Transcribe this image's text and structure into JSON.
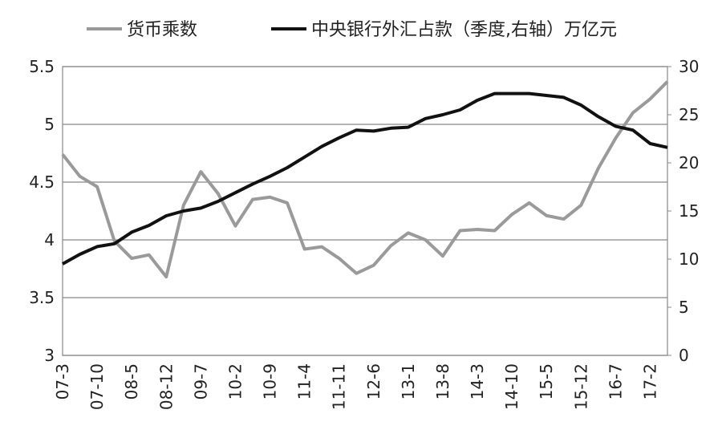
{
  "chart_data": {
    "type": "line",
    "categories": [
      "07-3",
      null,
      "07-10",
      null,
      "08-5",
      null,
      "08-12",
      null,
      "09-7",
      null,
      "10-2",
      null,
      "10-9",
      null,
      "11-4",
      null,
      "11-11",
      null,
      "12-6",
      null,
      "13-1",
      null,
      "13-8",
      null,
      "14-3",
      null,
      "14-10",
      null,
      "15-5",
      null,
      "15-12",
      null,
      "16-7",
      null,
      "17-2",
      null
    ],
    "series": [
      {
        "name": "货币乘数",
        "color": "#9a9a9a",
        "values": [
          4.74,
          4.55,
          4.46,
          3.99,
          3.84,
          3.87,
          3.68,
          4.3,
          4.59,
          4.4,
          4.12,
          4.35,
          4.37,
          4.32,
          3.92,
          3.94,
          3.84,
          3.71,
          3.78,
          3.95,
          4.06,
          4.0,
          3.86,
          4.08,
          4.09,
          4.08,
          4.22,
          4.32,
          4.21,
          4.18,
          4.3,
          4.62,
          4.88,
          5.1,
          5.22,
          5.37
        ]
      },
      {
        "name": "中央银行外汇占款（季度,右轴）万亿元",
        "color": "#111111",
        "axis": "y2",
        "values": [
          9.5,
          10.5,
          11.3,
          11.6,
          12.8,
          13.5,
          14.5,
          15.0,
          15.3,
          16.0,
          16.9,
          17.8,
          18.6,
          19.5,
          20.6,
          21.7,
          22.6,
          23.4,
          23.3,
          23.6,
          23.7,
          24.6,
          25.0,
          25.5,
          26.5,
          27.2,
          27.2,
          27.2,
          27.0,
          26.8,
          26.0,
          24.8,
          23.8,
          23.4,
          22.0,
          21.6
        ]
      }
    ],
    "ylim": [
      3,
      5.5
    ],
    "yticks": [
      3,
      3.5,
      4,
      4.5,
      5,
      5.5
    ],
    "y2lim": [
      0,
      30
    ],
    "y2ticks": [
      0,
      5,
      10,
      15,
      20,
      25,
      30
    ],
    "grid": true,
    "legend": "top"
  }
}
